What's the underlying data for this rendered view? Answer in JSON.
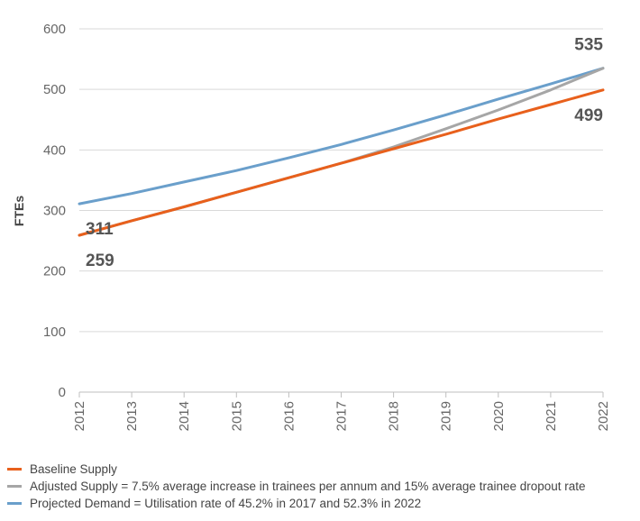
{
  "chart_data": {
    "type": "line",
    "title": "",
    "xlabel": "",
    "ylabel": "FTEs",
    "ylim": [
      0,
      600
    ],
    "yticks": [
      0,
      100,
      200,
      300,
      400,
      500,
      600
    ],
    "grid": "horizontal",
    "legend_position": "bottom",
    "x": [
      "2012",
      "2013",
      "2014",
      "2015",
      "2016",
      "2017",
      "2018",
      "2019",
      "2020",
      "2021",
      "2022"
    ],
    "series": [
      {
        "name": "Baseline Supply",
        "color": "#E8601C",
        "values": [
          259,
          283,
          306,
          330,
          354,
          378,
          402,
          426,
          451,
          475,
          499
        ]
      },
      {
        "name": "Adjusted Supply = 7.5% average increase in trainees per annum and 15% average trainee dropout rate",
        "color": "#A6A6A6",
        "values": [
          259,
          283,
          306,
          330,
          354,
          378,
          405,
          435,
          466,
          499,
          535
        ]
      },
      {
        "name": "Projected Demand = Utilisation rate of 45.2% in 2017 and 52.3% in 2022",
        "color": "#6A9FCB",
        "values": [
          311,
          328,
          347,
          366,
          387,
          409,
          433,
          458,
          484,
          509,
          535
        ]
      }
    ],
    "data_labels": [
      {
        "text": "311",
        "series": 2,
        "index": 0,
        "position": "below"
      },
      {
        "text": "259",
        "series": 0,
        "index": 0,
        "position": "below"
      },
      {
        "text": "535",
        "series": 2,
        "index": 10,
        "position": "above"
      },
      {
        "text": "499",
        "series": 0,
        "index": 10,
        "position": "below"
      }
    ]
  }
}
